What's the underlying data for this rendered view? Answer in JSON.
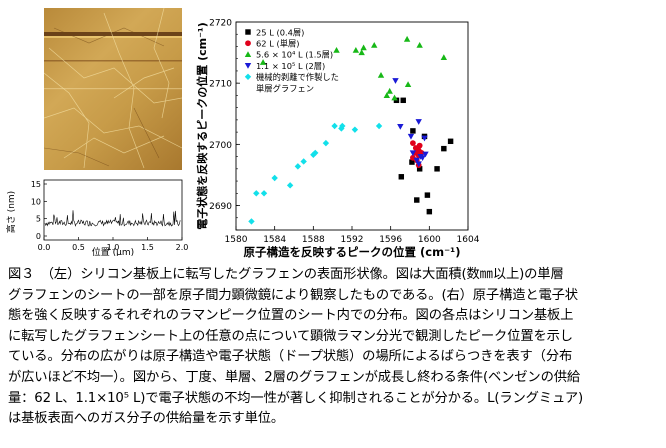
{
  "figure": {
    "afm_plot": {
      "ylabel": "高さ (nm)",
      "xlabel": "位置 (μm)",
      "yticks": [
        "15",
        "10",
        "5",
        "0"
      ],
      "xticks": [
        "0.0",
        "0.5",
        "1.0",
        "1.5",
        "2.0"
      ]
    }
  },
  "chart_data": {
    "type": "scatter",
    "xlabel": "原子構造を反映するピークの位置 (cm⁻¹)",
    "ylabel": "電子状態を反映するピークの位置 (cm⁻¹)",
    "xlim": [
      1580,
      1604
    ],
    "ylim": [
      2686,
      2720
    ],
    "xticks": [
      "1580",
      "1584",
      "1588",
      "1592",
      "1596",
      "1600",
      "1604"
    ],
    "yticks": [
      "2690",
      "2700",
      "2710",
      "2720"
    ],
    "legend_position": "top-left",
    "series": [
      {
        "name": "25 L (0.4層)",
        "color": "#000000",
        "marker": "square",
        "points": [
          [
            1596.6,
            2707.2
          ],
          [
            1597.3,
            2707.2
          ],
          [
            1598.3,
            2702.2
          ],
          [
            1599.5,
            2701.3
          ],
          [
            1601.5,
            2699.3
          ],
          [
            1602.2,
            2700.5
          ],
          [
            1597.1,
            2694.7
          ],
          [
            1598.2,
            2697.1
          ],
          [
            1599.0,
            2696.0
          ],
          [
            1598.7,
            2690.9
          ],
          [
            1599.8,
            2691.7
          ],
          [
            1600.0,
            2689.0
          ],
          [
            1600.8,
            2696.0
          ]
        ]
      },
      {
        "name": "62 L (単層)",
        "color": "#e0001b",
        "marker": "circle",
        "points": [
          [
            1598.3,
            2700.2
          ],
          [
            1598.6,
            2699.4
          ],
          [
            1598.9,
            2699.0
          ],
          [
            1598.6,
            2698.6
          ],
          [
            1598.9,
            2698.2
          ],
          [
            1599.2,
            2698.6
          ],
          [
            1598.3,
            2697.8
          ],
          [
            1598.7,
            2697.4
          ],
          [
            1598.9,
            2696.6
          ],
          [
            1599.0,
            2699.8
          ]
        ]
      },
      {
        "name": "5.6 × 10⁴ L (1.5層)",
        "color": "#17b817",
        "marker": "triangle-up",
        "points": [
          [
            1582.8,
            2713.4
          ],
          [
            1590.4,
            2715.4
          ],
          [
            1592.4,
            2715.4
          ],
          [
            1593.0,
            2715.0
          ],
          [
            1593.2,
            2715.8
          ],
          [
            1594.3,
            2716.2
          ],
          [
            1595.0,
            2711.3
          ],
          [
            1595.9,
            2708.7
          ],
          [
            1596.4,
            2707.6
          ],
          [
            1597.7,
            2717.2
          ],
          [
            1599.0,
            2716.2
          ],
          [
            1601.5,
            2714.2
          ],
          [
            1597.8,
            2709.8
          ],
          [
            1595.6,
            2708.0
          ]
        ]
      },
      {
        "name": "1.1 × 10⁵ L (2層)",
        "color": "#1a1ad6",
        "marker": "triangle-down",
        "points": [
          [
            1596.5,
            2710.4
          ],
          [
            1597.0,
            2702.9
          ],
          [
            1598.9,
            2703.7
          ],
          [
            1599.5,
            2701.0
          ],
          [
            1598.3,
            2698.6
          ],
          [
            1599.1,
            2698.0
          ],
          [
            1598.7,
            2697.4
          ],
          [
            1599.3,
            2697.8
          ],
          [
            1598.1,
            2701.3
          ],
          [
            1598.9,
            2696.8
          ],
          [
            1599.6,
            2698.4
          ]
        ]
      },
      {
        "name": "機械的剥離で作製した単層グラフェン",
        "color": "#12e0ea",
        "marker": "diamond",
        "points": [
          [
            1581.6,
            2687.4
          ],
          [
            1582.1,
            2692.0
          ],
          [
            1582.9,
            2692.0
          ],
          [
            1584.0,
            2694.5
          ],
          [
            1585.6,
            2693.3
          ],
          [
            1586.4,
            2696.4
          ],
          [
            1587.0,
            2697.2
          ],
          [
            1588.0,
            2698.3
          ],
          [
            1588.2,
            2698.6
          ],
          [
            1589.3,
            2700.2
          ],
          [
            1590.2,
            2703.0
          ],
          [
            1590.9,
            2702.6
          ],
          [
            1591.0,
            2703.0
          ],
          [
            1592.3,
            2702.4
          ],
          [
            1594.8,
            2703.0
          ]
        ]
      }
    ]
  },
  "caption": {
    "lines": [
      "図３　（左）シリコン基板上に転写したグラフェンの表面形状像。図は大面積(数㎜以上)の単層",
      "グラフェンのシートの一部を原子間力顕微鏡により観察したものである。(右）原子構造と電子状",
      "態を強く反映するそれぞれのラマンピーク位置のシート内での分布。図の各点はシリコン基板上",
      "に転写したグラフェンシート上の任意の点について顕微ラマン分光で観測したピーク位置を示し",
      "ている。分布の広がりは原子構造や電子状態（ドープ状態）の場所によるばらつきを表す（分布",
      "が広いほど不均一）。図から、丁度、単層、2層のグラフェンが成長し終わる条件(ベンゼンの供給",
      "量：62 L、1.1×10⁵ L)で電子状態の不均一性が著しく抑制されることが分かる。L(ラングミュア)",
      "は基板表面へのガス分子の供給量を示す単位。"
    ]
  }
}
